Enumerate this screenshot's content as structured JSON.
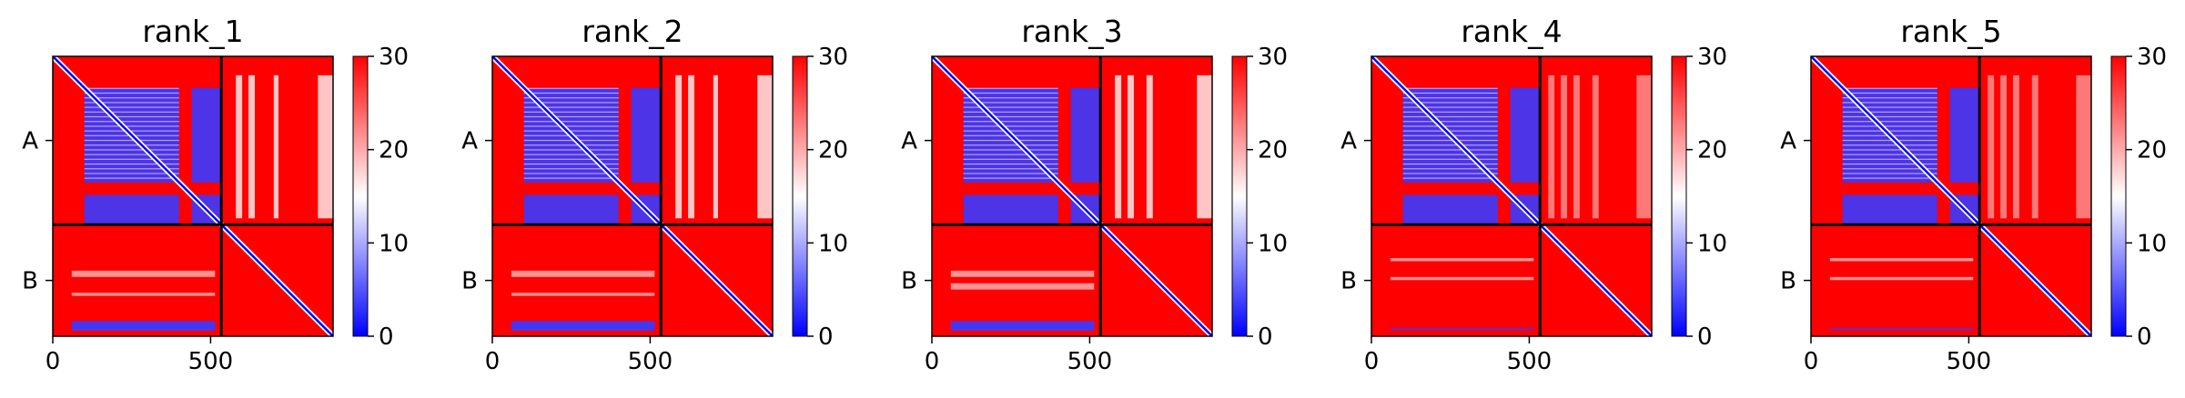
{
  "chart_data": [
    {
      "type": "heatmap",
      "title": "rank_1",
      "xticks": [
        0,
        500
      ],
      "yticks": [
        "A",
        "B"
      ],
      "boundary": 534,
      "extent": [
        0,
        888
      ],
      "colorbar": {
        "min": 0,
        "max": 30,
        "ticks": [
          0,
          10,
          20,
          30
        ],
        "colors": [
          "#0000ff",
          "#ffffff",
          "#ff0000"
        ]
      },
      "AA_block": {
        "blue_bands": [
          [
            100,
            400
          ],
          [
            440,
            534
          ]
        ],
        "stripes_right": [
          [
            580,
            600
          ],
          [
            620,
            640
          ],
          [
            700,
            715
          ],
          [
            840,
            888
          ]
        ]
      },
      "BB_diag": true,
      "BA_band_rows": [
        [
          680,
          700
        ],
        [
          750,
          760
        ],
        [
          840,
          870
        ]
      ],
      "intensity": 1.0
    },
    {
      "type": "heatmap",
      "title": "rank_2",
      "xticks": [
        0,
        500
      ],
      "yticks": [
        "A",
        "B"
      ],
      "boundary": 534,
      "extent": [
        0,
        888
      ],
      "colorbar": {
        "min": 0,
        "max": 30,
        "ticks": [
          0,
          10,
          20,
          30
        ],
        "colors": [
          "#0000ff",
          "#ffffff",
          "#ff0000"
        ]
      },
      "AA_block": {
        "blue_bands": [
          [
            100,
            400
          ],
          [
            440,
            534
          ]
        ],
        "stripes_right": [
          [
            580,
            600
          ],
          [
            620,
            640
          ],
          [
            700,
            715
          ],
          [
            840,
            888
          ]
        ]
      },
      "BB_diag": true,
      "BA_band_rows": [
        [
          680,
          700
        ],
        [
          750,
          760
        ],
        [
          840,
          870
        ]
      ],
      "intensity": 1.0
    },
    {
      "type": "heatmap",
      "title": "rank_3",
      "xticks": [
        0,
        500
      ],
      "yticks": [
        "A",
        "B"
      ],
      "boundary": 534,
      "extent": [
        0,
        888
      ],
      "colorbar": {
        "min": 0,
        "max": 30,
        "ticks": [
          0,
          10,
          20,
          30
        ],
        "colors": [
          "#0000ff",
          "#ffffff",
          "#ff0000"
        ]
      },
      "AA_block": {
        "blue_bands": [
          [
            100,
            400
          ],
          [
            440,
            534
          ]
        ],
        "stripes_right": [
          [
            580,
            600
          ],
          [
            620,
            640
          ],
          [
            680,
            700
          ],
          [
            840,
            888
          ]
        ]
      },
      "BB_diag": true,
      "BA_band_rows": [
        [
          680,
          700
        ],
        [
          720,
          740
        ],
        [
          840,
          870
        ]
      ],
      "intensity": 1.0
    },
    {
      "type": "heatmap",
      "title": "rank_4",
      "xticks": [
        0,
        500
      ],
      "yticks": [
        "A",
        "B"
      ],
      "boundary": 534,
      "extent": [
        0,
        888
      ],
      "colorbar": {
        "min": 0,
        "max": 30,
        "ticks": [
          0,
          10,
          20,
          30
        ],
        "colors": [
          "#0000ff",
          "#ffffff",
          "#ff0000"
        ]
      },
      "AA_block": {
        "blue_bands": [
          [
            100,
            400
          ],
          [
            440,
            534
          ]
        ],
        "stripes_right": [
          [
            560,
            580
          ],
          [
            600,
            620
          ],
          [
            640,
            660
          ],
          [
            700,
            720
          ],
          [
            840,
            888
          ]
        ]
      },
      "BB_diag": true,
      "BA_band_rows": [
        [
          640,
          650
        ],
        [
          700,
          710
        ],
        [
          860,
          870
        ]
      ],
      "intensity": 0.5
    },
    {
      "type": "heatmap",
      "title": "rank_5",
      "xticks": [
        0,
        500
      ],
      "yticks": [
        "A",
        "B"
      ],
      "boundary": 534,
      "extent": [
        0,
        888
      ],
      "colorbar": {
        "min": 0,
        "max": 30,
        "ticks": [
          0,
          10,
          20,
          30
        ],
        "colors": [
          "#0000ff",
          "#ffffff",
          "#ff0000"
        ]
      },
      "AA_block": {
        "blue_bands": [
          [
            100,
            400
          ],
          [
            440,
            534
          ]
        ],
        "stripes_right": [
          [
            560,
            580
          ],
          [
            600,
            620
          ],
          [
            640,
            660
          ],
          [
            700,
            720
          ],
          [
            840,
            888
          ]
        ]
      },
      "BB_diag": true,
      "BA_band_rows": [
        [
          640,
          650
        ],
        [
          700,
          710
        ],
        [
          860,
          870
        ]
      ],
      "intensity": 0.5
    }
  ]
}
